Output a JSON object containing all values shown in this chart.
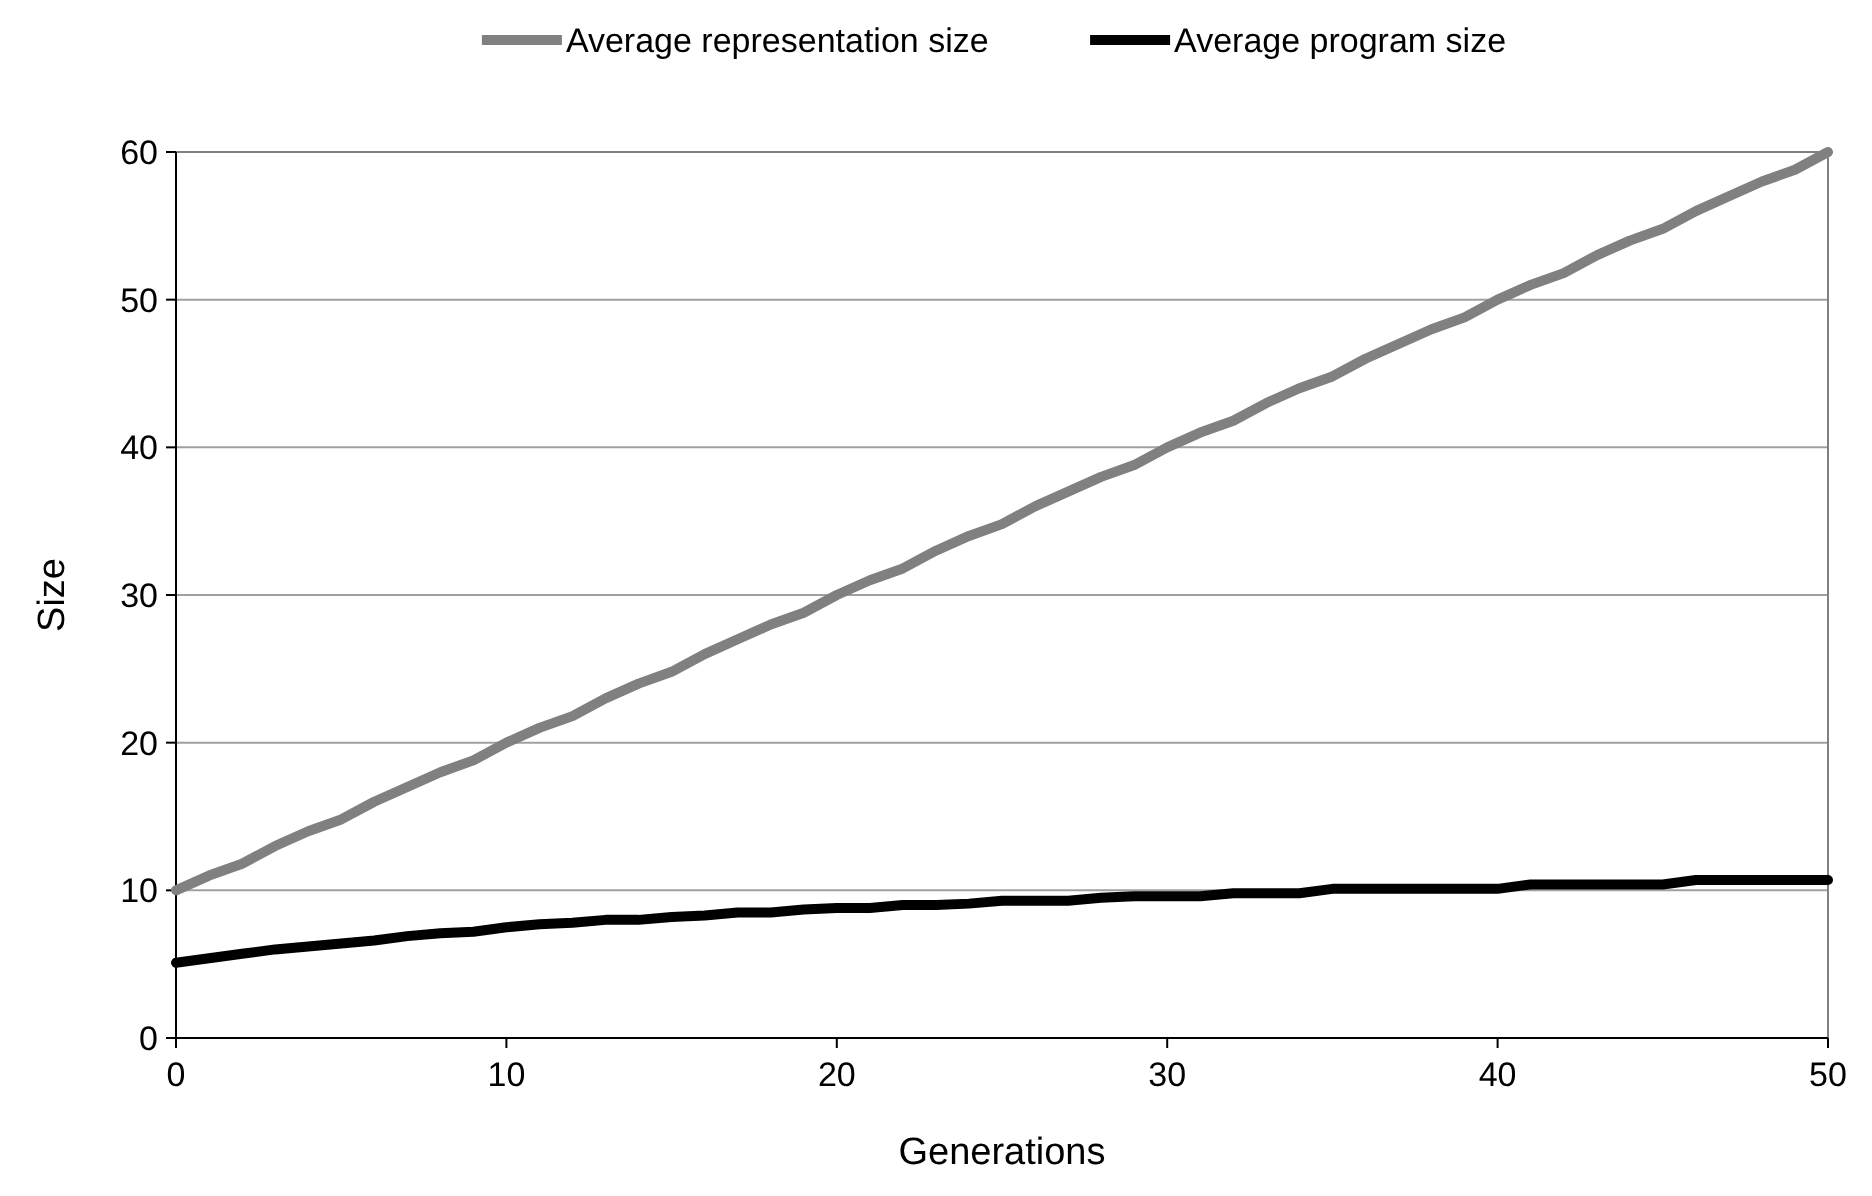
{
  "chart_data": {
    "type": "line",
    "xlabel": "Generations",
    "ylabel": "Size",
    "x": [
      0,
      1,
      2,
      3,
      4,
      5,
      6,
      7,
      8,
      9,
      10,
      11,
      12,
      13,
      14,
      15,
      16,
      17,
      18,
      19,
      20,
      21,
      22,
      23,
      24,
      25,
      26,
      27,
      28,
      29,
      30,
      31,
      32,
      33,
      34,
      35,
      36,
      37,
      38,
      39,
      40,
      41,
      42,
      43,
      44,
      45,
      46,
      47,
      48,
      49,
      50
    ],
    "series": [
      {
        "name": "Average representation size",
        "color": "#808080",
        "values": [
          10,
          11,
          11.8,
          13,
          14,
          14.8,
          16,
          17,
          18,
          18.8,
          20,
          21,
          21.8,
          23,
          24,
          24.8,
          26,
          27,
          28,
          28.8,
          30,
          31,
          31.8,
          33,
          34,
          34.8,
          36,
          37,
          38,
          38.8,
          40,
          41,
          41.8,
          43,
          44,
          44.8,
          46,
          47,
          48,
          48.8,
          50,
          51,
          51.8,
          53,
          54,
          54.8,
          56,
          57,
          58,
          58.8,
          60
        ]
      },
      {
        "name": "Average program size",
        "color": "#000000",
        "values": [
          5.1,
          5.4,
          5.7,
          6,
          6.2,
          6.4,
          6.6,
          6.9,
          7.1,
          7.2,
          7.5,
          7.7,
          7.8,
          8,
          8,
          8.2,
          8.3,
          8.5,
          8.5,
          8.7,
          8.8,
          8.8,
          9,
          9,
          9.1,
          9.3,
          9.3,
          9.3,
          9.5,
          9.6,
          9.6,
          9.6,
          9.8,
          9.8,
          9.8,
          10.1,
          10.1,
          10.1,
          10.1,
          10.1,
          10.1,
          10.4,
          10.4,
          10.4,
          10.4,
          10.4,
          10.7,
          10.7,
          10.7,
          10.7,
          10.7
        ]
      }
    ],
    "xlim": [
      0,
      50
    ],
    "xticks": [
      0,
      10,
      20,
      30,
      40,
      50
    ],
    "ylim": [
      0,
      60
    ],
    "yticks": [
      0,
      10,
      20,
      30,
      40,
      50,
      60
    ],
    "grid": "y",
    "legend": "top",
    "marker": "none",
    "line_style": "solid"
  }
}
